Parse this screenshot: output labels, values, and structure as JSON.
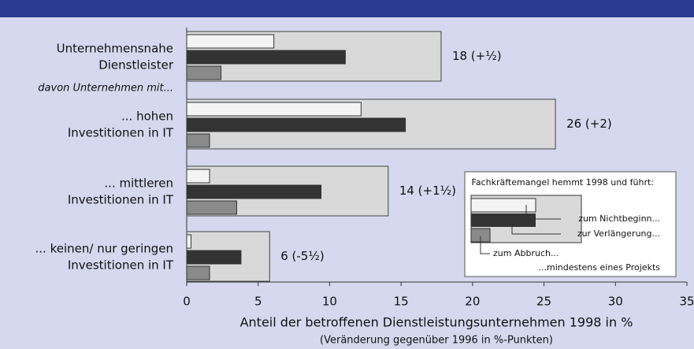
{
  "chart_data": {
    "type": "bar",
    "orientation": "horizontal",
    "categories": [
      "Unternehmensnahe\nDienstleister",
      "... hohen\nInvestitionen in IT",
      "... mittleren\nInvestitionen in IT",
      "... keinen/ nur geringen\nInvestitionen in IT"
    ],
    "subheading": "davon Unternehmen mit...",
    "series": [
      {
        "name": "...mindestens eines Projekts",
        "color": "#d9d9d9",
        "values": [
          17.8,
          25.8,
          14.1,
          5.8
        ],
        "value_labels": [
          "18 (+½)",
          "26 (+2)",
          "14 (+1½)",
          "6 (-5½)"
        ]
      },
      {
        "name": "zum Nichtbeginn...",
        "color": "#f4f4f4",
        "values": [
          6.1,
          12.2,
          1.6,
          0.3
        ]
      },
      {
        "name": "zur Verlängerung...",
        "color": "#333333",
        "values": [
          11.1,
          15.3,
          9.4,
          3.8
        ]
      },
      {
        "name": "zum Abbruch...",
        "color": "#8a8a8a",
        "values": [
          2.4,
          1.6,
          3.5,
          1.6
        ]
      }
    ],
    "legend_title": "Fachkräftemangel hemmt 1998 und führt:",
    "xlabel": "Anteil der betroffenen Dienstleistungsunternehmen 1998 in %",
    "xlabel_sub": "(Veränderung gegenüber 1996 in %-Punkten)",
    "xlim": [
      0,
      35
    ],
    "xticks": [
      0,
      5,
      10,
      15,
      20,
      25,
      30,
      35
    ]
  }
}
